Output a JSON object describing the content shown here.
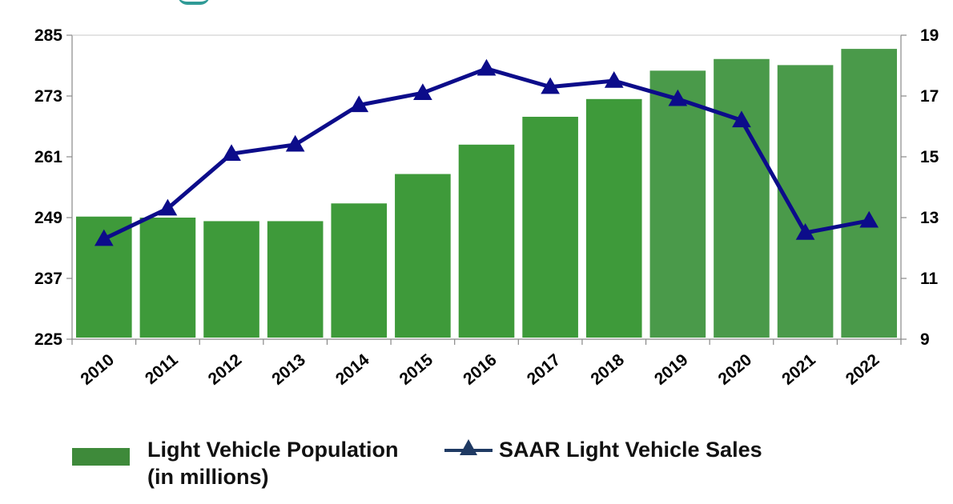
{
  "chart_data": {
    "type": "bar",
    "categories": [
      "2010",
      "2011",
      "2012",
      "2013",
      "2014",
      "2015",
      "2016",
      "2017",
      "2018",
      "2019",
      "2020",
      "2021",
      "2022"
    ],
    "series": [
      {
        "name": "Light Vehicle Population (in millions)",
        "type": "bar",
        "axis": "left",
        "values": [
          249.2,
          249.0,
          248.3,
          248.3,
          251.8,
          257.6,
          263.4,
          268.9,
          272.4,
          278.0,
          280.3,
          279.1,
          282.3
        ]
      },
      {
        "name": "SAAR Light Vehicle Sales",
        "type": "line",
        "axis": "right",
        "marker": "triangle",
        "values": [
          12.3,
          13.3,
          15.1,
          15.4,
          16.7,
          17.1,
          17.9,
          17.3,
          17.5,
          16.9,
          16.2,
          12.5,
          12.9
        ]
      }
    ],
    "y_left": {
      "ticks": [
        "285",
        "273",
        "261",
        "249",
        "237",
        "225"
      ],
      "ylim": [
        225,
        285
      ]
    },
    "y_right": {
      "ticks": [
        "19",
        "17",
        "15",
        "13",
        "11",
        "9"
      ],
      "ylim": [
        9,
        19
      ]
    },
    "grid": false,
    "legend_position": "bottom",
    "colors": {
      "bar": "#3e9a3a",
      "bar_late": "#4a9a4a",
      "line": "#0c0c8a",
      "legend_line": "#1f3a63"
    }
  },
  "legend": {
    "bar_label": "Light Vehicle Population\n(in millions)",
    "line_label": "SAAR Light Vehicle Sales"
  }
}
